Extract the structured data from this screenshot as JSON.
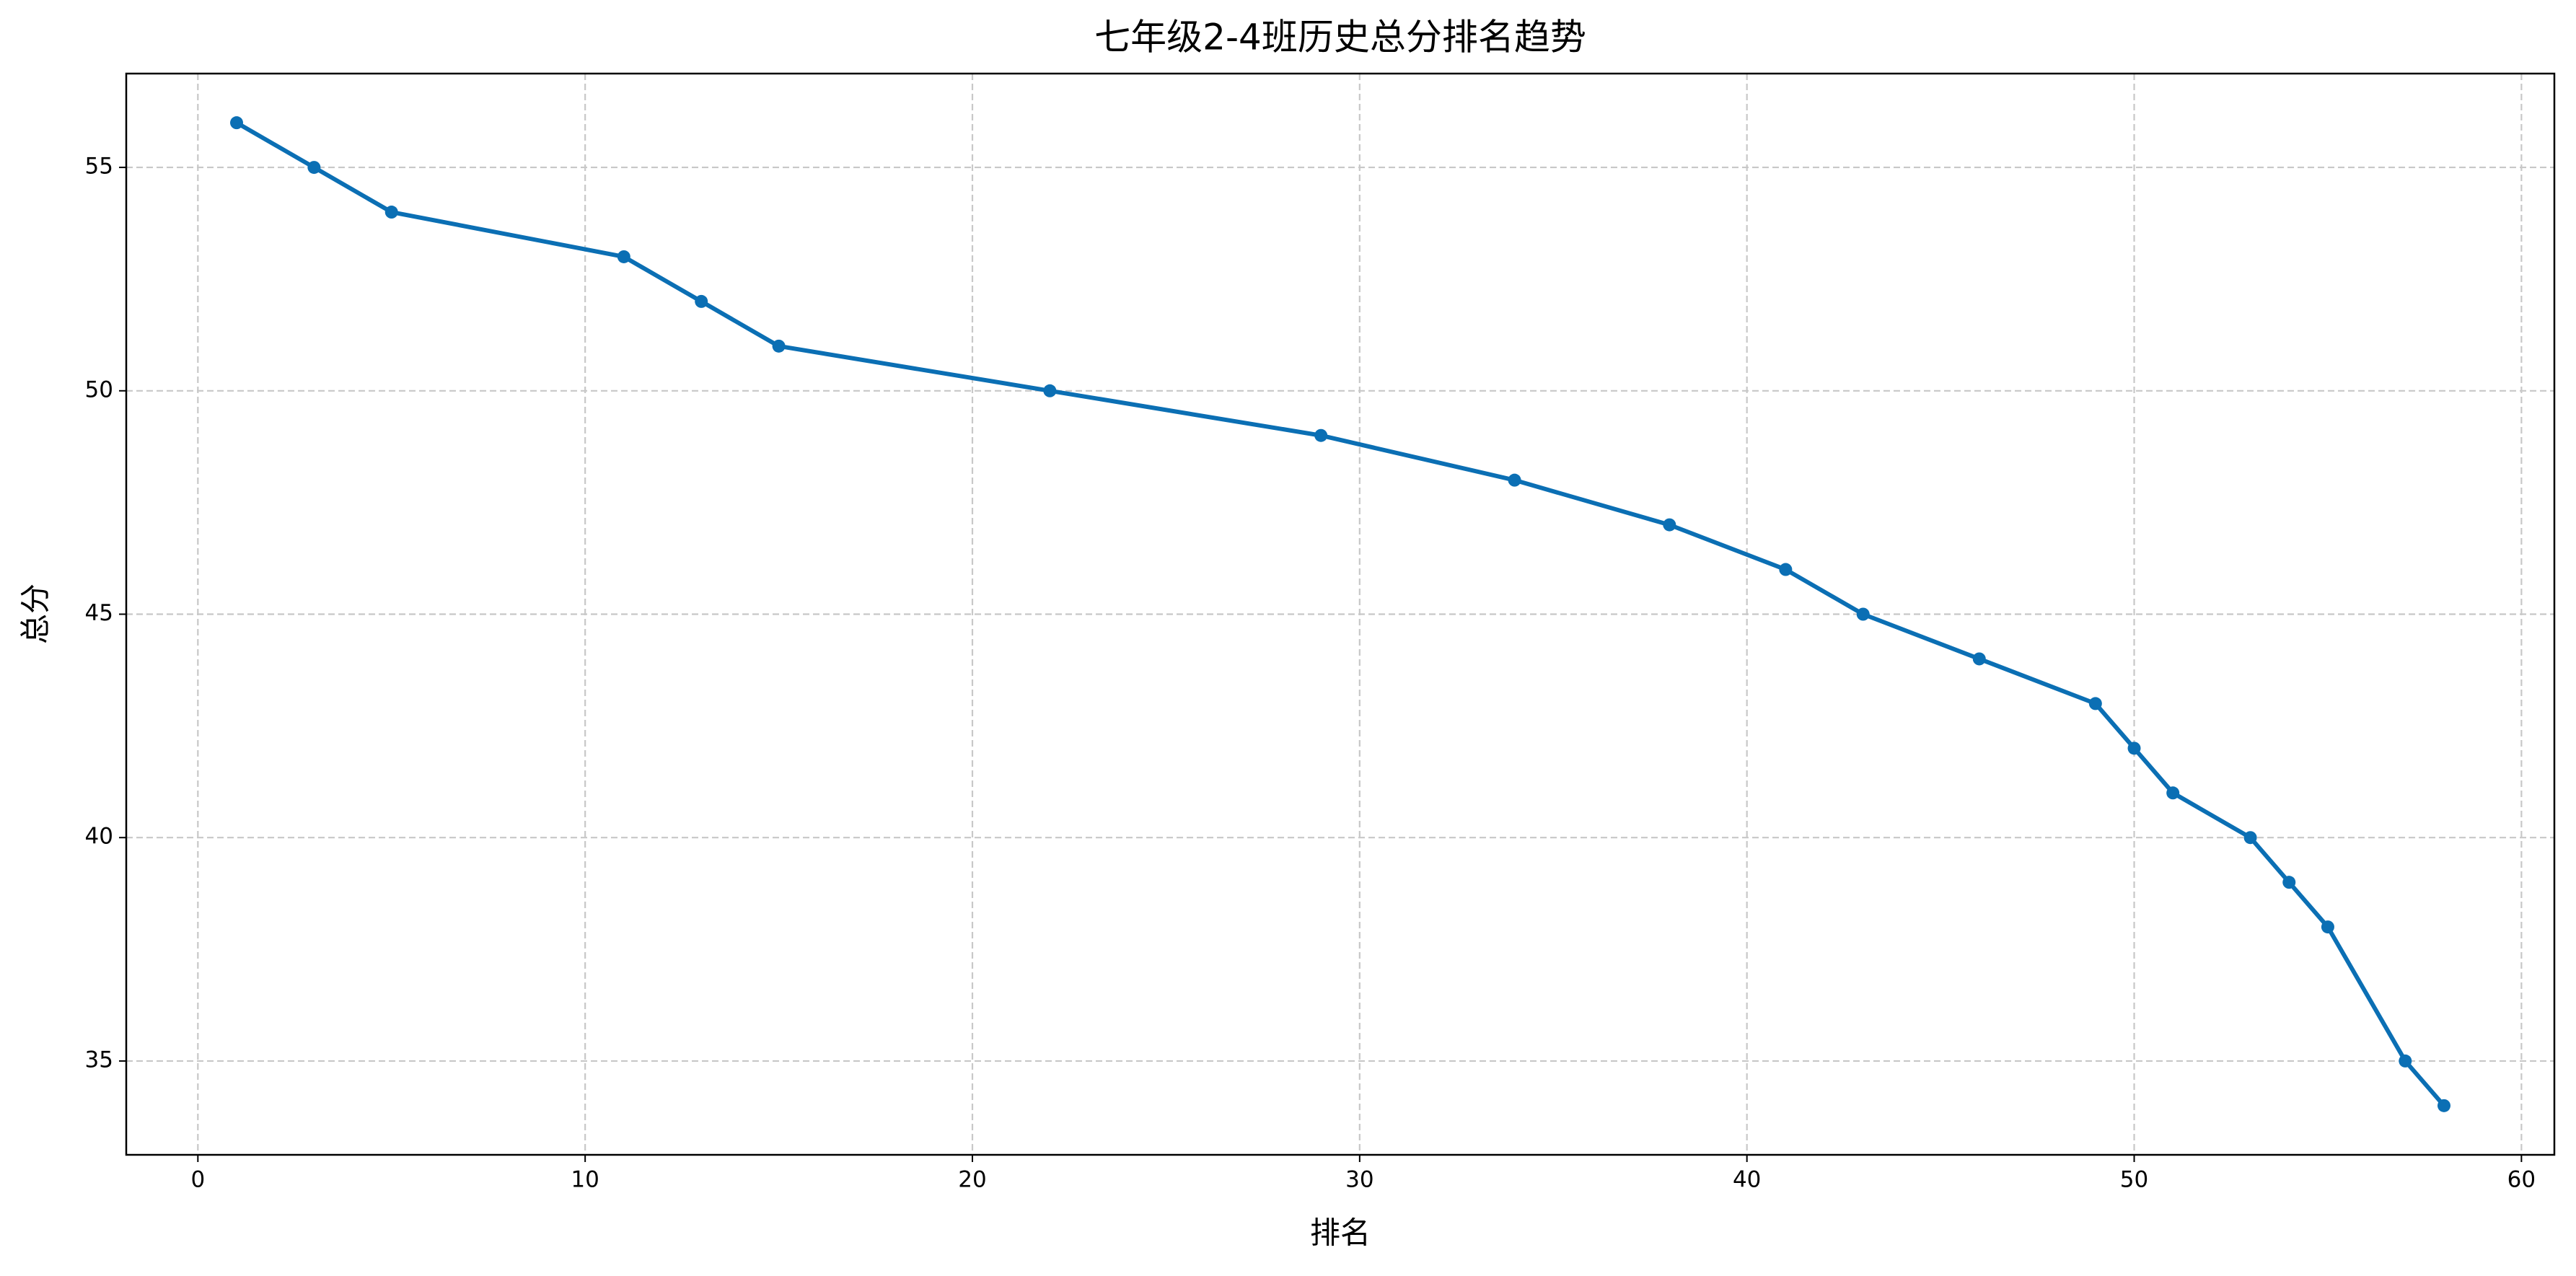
{
  "chart_data": {
    "type": "line",
    "title": "七年级2-4班历史总分排名趋势",
    "x_label": "排名",
    "y_label": "总分",
    "x": [
      1,
      3,
      5,
      11,
      13,
      15,
      22,
      29,
      34,
      38,
      41,
      43,
      46,
      49,
      50,
      51,
      53,
      54,
      55,
      57,
      58
    ],
    "series": [
      {
        "color": "#0b6fb4",
        "values": [
          56,
          55,
          54,
          53,
          52,
          51,
          50,
          49,
          48,
          47,
          46,
          45,
          44,
          43,
          42,
          41,
          40,
          39,
          38,
          35,
          34
        ]
      }
    ],
    "xlim": [
      -1.85,
      60.85
    ],
    "xticks": [
      0,
      10,
      20,
      30,
      40,
      50,
      60
    ],
    "ylim": [
      32.9,
      57.1
    ],
    "yticks": [
      35,
      40,
      45,
      50,
      55
    ],
    "grid": true
  }
}
